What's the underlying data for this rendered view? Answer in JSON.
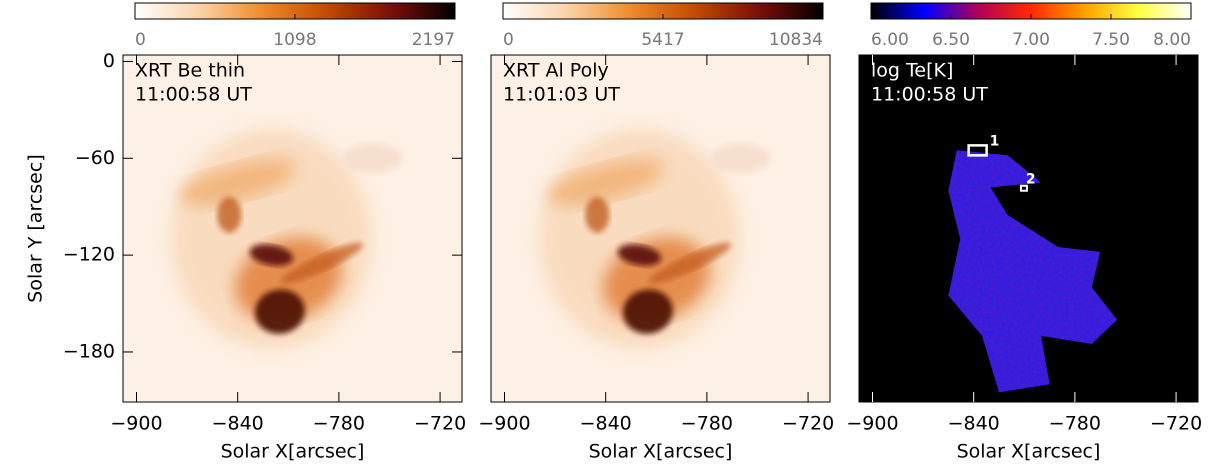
{
  "chart_data": [
    {
      "type": "image",
      "labels": [
        "XRT Be thin",
        "11:00:58 UT"
      ],
      "colorbar": {
        "lim": [
          0,
          2197
        ],
        "ticks": [
          0,
          1098,
          2197
        ],
        "colors": [
          "#ffffff",
          "#fbd3a8",
          "#f08a2a",
          "#c24a00",
          "#7a0f0a",
          "#000000"
        ]
      },
      "xlim": [
        -908,
        -707
      ],
      "ylim": [
        -211,
        4
      ],
      "xticks": [
        {
          "value": -900,
          "label": "−900"
        },
        {
          "value": -840,
          "label": "−840"
        },
        {
          "value": -780,
          "label": "−780"
        },
        {
          "value": -720,
          "label": "−720"
        }
      ],
      "yticks": [
        0,
        {
          "value": -60,
          "label": "−60"
        },
        {
          "value": -120,
          "label": "−120"
        },
        {
          "value": -180,
          "label": "−180"
        }
      ],
      "xlabel": "Solar X[arcsec]",
      "ylabel": "Solar Y [arcsec]"
    },
    {
      "type": "image",
      "labels": [
        "XRT Al Poly",
        "11:01:03 UT"
      ],
      "colorbar": {
        "lim": [
          0,
          10834
        ],
        "ticks": [
          0,
          5417,
          10834
        ],
        "colors": [
          "#ffffff",
          "#fbd3a8",
          "#f08a2a",
          "#c24a00",
          "#7a0f0a",
          "#000000"
        ]
      },
      "xlim": [
        -908,
        -707
      ],
      "ylim": [
        -211,
        4
      ],
      "xticks": [
        {
          "value": -900,
          "label": "−900"
        },
        {
          "value": -840,
          "label": "−840"
        },
        {
          "value": -780,
          "label": "−780"
        },
        {
          "value": -720,
          "label": "−720"
        }
      ],
      "xlabel": "Solar X[arcsec]"
    },
    {
      "type": "image",
      "labels": [
        "log Te[K]",
        "11:00:58 UT"
      ],
      "colorbar": {
        "lim": [
          6,
          8
        ],
        "ticks": [
          {
            "value": 6,
            "label": "6.00"
          },
          {
            "value": 6.5,
            "label": "6.50"
          },
          {
            "value": 7,
            "label": "7.00"
          },
          {
            "value": 7.5,
            "label": "7.50"
          },
          {
            "value": 8,
            "label": "8.00"
          }
        ],
        "colors": [
          "#000000",
          "#0000ff",
          "#b0005a",
          "#ff2a00",
          "#ffa000",
          "#ffff40",
          "#ffffff"
        ]
      },
      "xlim": [
        -908,
        -707
      ],
      "ylim": [
        -211,
        4
      ],
      "xticks": [
        {
          "value": -900,
          "label": "−900"
        },
        {
          "value": -840,
          "label": "−840"
        },
        {
          "value": -780,
          "label": "−780"
        },
        {
          "value": -720,
          "label": "−720"
        }
      ],
      "xlabel": "Solar X[arcsec]",
      "annotations": [
        "1",
        "2"
      ]
    }
  ]
}
